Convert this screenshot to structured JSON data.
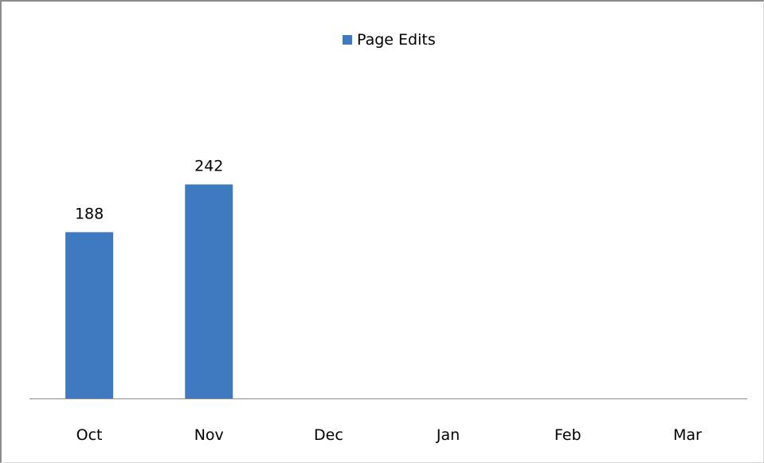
{
  "chart_data": {
    "type": "bar",
    "title": "",
    "xlabel": "",
    "ylabel": "",
    "categories": [
      "Oct",
      "Nov",
      "Dec",
      "Jan",
      "Feb",
      "Mar"
    ],
    "series": [
      {
        "name": "Page Edits",
        "values": [
          188,
          242,
          null,
          null,
          null,
          null
        ],
        "data_labels": [
          "188",
          "242"
        ],
        "color": "#3f79bf"
      }
    ],
    "ylim": [
      0,
      410
    ],
    "grid": false,
    "legend": "top-center"
  }
}
